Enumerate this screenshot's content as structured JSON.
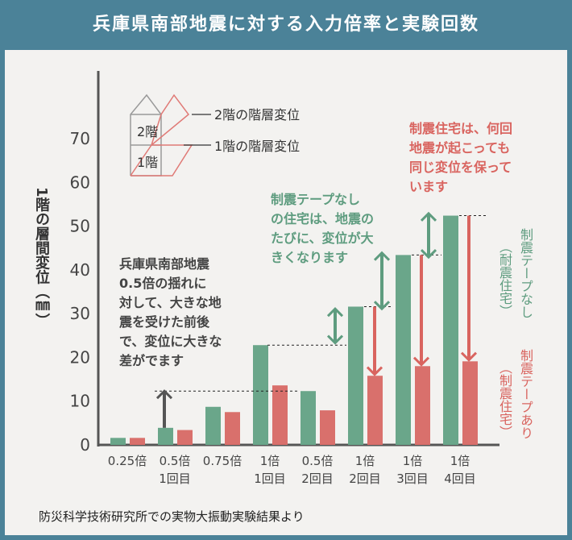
{
  "title": "兵庫県南部地震に対する入力倍率と実験回数",
  "source": "防災科学技術研究所での実物大振動実験結果より",
  "diagram": {
    "floor2": "2階",
    "floor1": "1階",
    "label2": "2階の階層変位",
    "label1": "1階の階層変位"
  },
  "annotations": {
    "black": [
      "兵庫県南部地震",
      "0.5倍の揺れに",
      "対して、大きな地",
      "震を受けた前後",
      "で、変位に大きな",
      "差がでます"
    ],
    "green": [
      "制震テープなし",
      "の住宅は、地震の",
      "たびに、変位が大",
      "きくなります"
    ],
    "red": [
      "制震住宅は、何回",
      "地震が起こっても",
      "同じ変位を保って",
      "います"
    ]
  },
  "legend": {
    "green_main": "制震テープなし",
    "green_sub": "（耐震住宅）",
    "red_main": "制震テープあり",
    "red_sub": "（制震住宅）"
  },
  "chart_data": {
    "type": "bar",
    "title": "兵庫県南部地震に対する入力倍率と実験回数",
    "ylabel": "1階の層間変位（㎜）",
    "xlabel": "",
    "ylim": [
      0,
      70
    ],
    "yticks": [
      0,
      10,
      20,
      30,
      40,
      50,
      60,
      70
    ],
    "categories": [
      [
        "0.25倍",
        ""
      ],
      [
        "0.5倍",
        "1回目"
      ],
      [
        "0.75倍",
        ""
      ],
      [
        "1倍",
        "1回目"
      ],
      [
        "0.5倍",
        "2回目"
      ],
      [
        "1倍",
        "2回目"
      ],
      [
        "1倍",
        "3回目"
      ],
      [
        "1倍",
        "4回目"
      ]
    ],
    "series": [
      {
        "name": "制震テープなし（耐震住宅）",
        "color": "#6aa68a",
        "values": [
          1.6,
          3.9,
          8.7,
          22.8,
          12.3,
          31.6,
          43.4,
          52.4
        ]
      },
      {
        "name": "制震テープあり（制震住宅）",
        "color": "#d9706c",
        "values": [
          1.6,
          3.4,
          7.5,
          13.6,
          7.9,
          15.8,
          18.0,
          19.1
        ]
      }
    ],
    "grid": false,
    "legend_position": "right"
  }
}
